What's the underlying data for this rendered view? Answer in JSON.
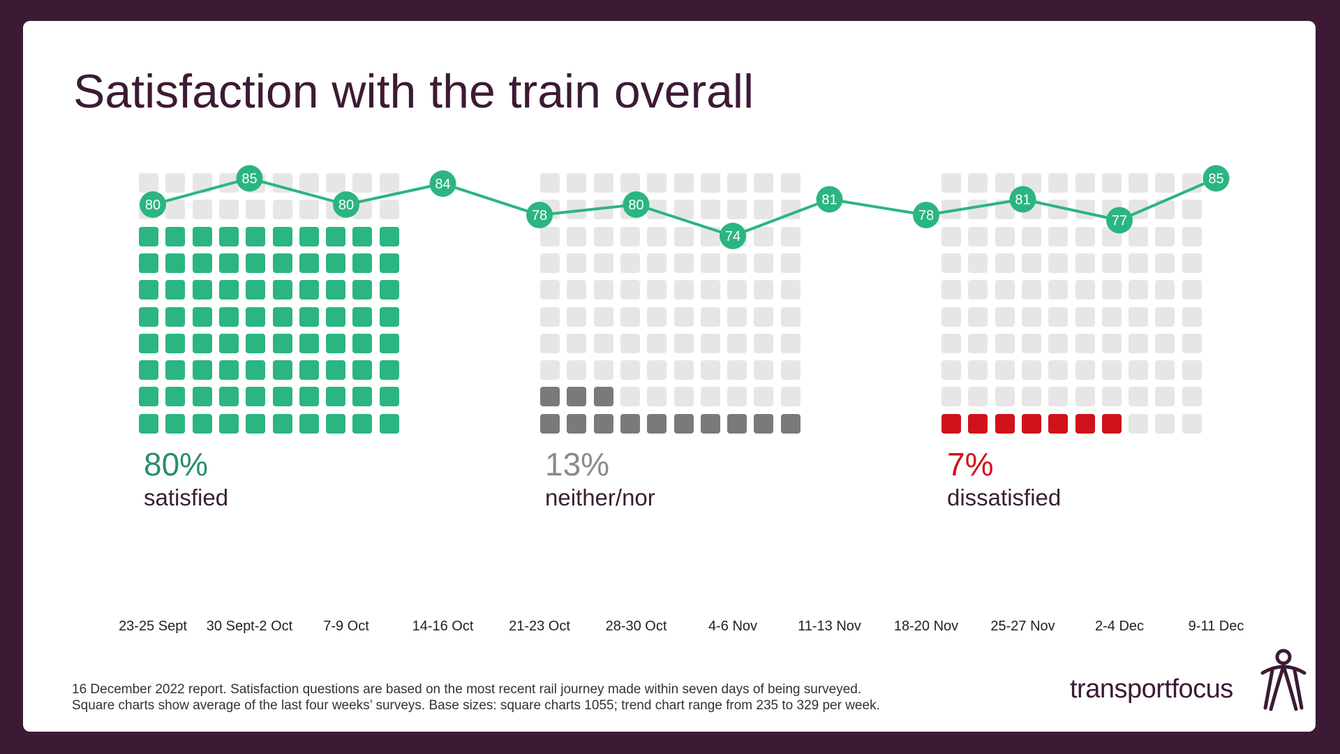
{
  "title": "Satisfaction with the train overall",
  "colors": {
    "background": "#3c1a35",
    "satisfied": "#2bb580",
    "neither": "#7a7a7a",
    "dissatisfied": "#d0121b",
    "empty": "#e6e6e6",
    "trend": "#2bb580"
  },
  "chart_data": [
    {
      "type": "waffle",
      "grid": "10x10",
      "categories": [
        "satisfied",
        "neither/nor",
        "dissatisfied"
      ],
      "values": [
        80,
        13,
        7
      ],
      "labels": [
        "80%",
        "13%",
        "7%"
      ],
      "units": "%"
    },
    {
      "type": "line",
      "x": [
        "23-25 Sept",
        "30 Sept-2 Oct",
        "7-9 Oct",
        "14-16 Oct",
        "21-23 Oct",
        "28-30 Oct",
        "4-6 Nov",
        "11-13 Nov",
        "18-20 Nov",
        "25-27 Nov",
        "2-4 Dec",
        "9-11 Dec"
      ],
      "values": [
        80,
        85,
        80,
        84,
        78,
        80,
        74,
        81,
        78,
        81,
        77,
        85
      ],
      "data_labels": true,
      "grid": false
    }
  ],
  "waffles": [
    {
      "pct": "80%",
      "label": "satisfied"
    },
    {
      "pct": "13%",
      "label": "neither/nor"
    },
    {
      "pct": "7%",
      "label": "dissatisfied"
    }
  ],
  "footnote": {
    "line1": "16 December 2022 report. Satisfaction questions are based on the most recent rail journey made within seven days of being surveyed.",
    "line2": "Square charts show average of the last four weeks’ surveys. Base sizes: square charts 1055; trend chart range from 235 to 329 per week."
  },
  "logo": {
    "text": "transportfocus"
  }
}
